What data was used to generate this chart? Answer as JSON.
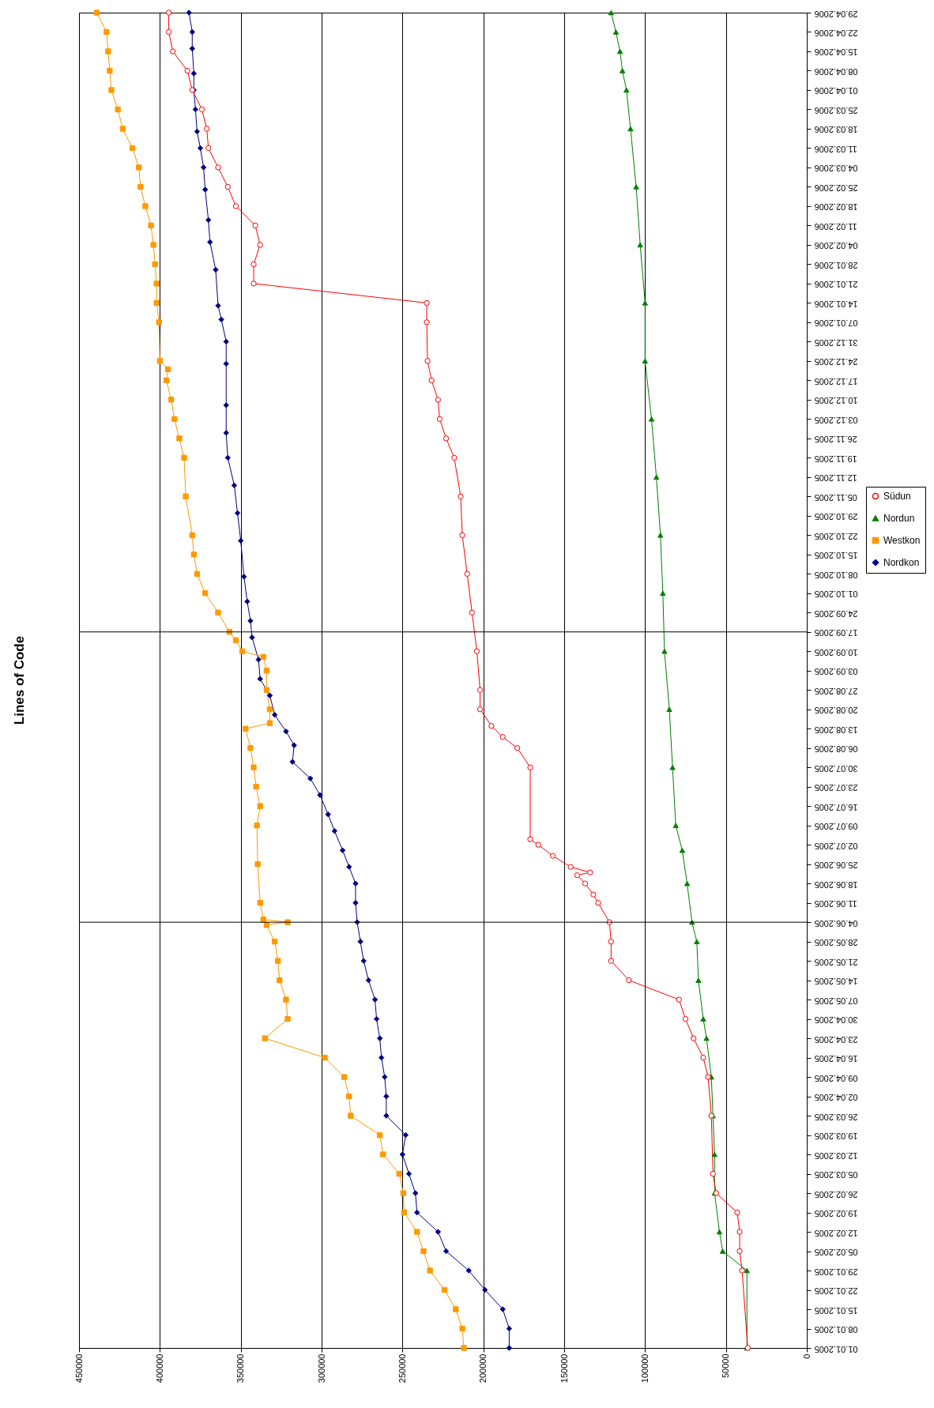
{
  "chart_data": {
    "type": "line",
    "title": "Lines of Code",
    "orientation": "horizontal",
    "ylim": [
      "2005-01-01",
      "2006-04-29"
    ],
    "yticks": [
      {
        "value": "2005-01-01",
        "label": "01.01.2005"
      },
      {
        "value": "2005-01-08",
        "label": "08.01.2005"
      },
      {
        "value": "2005-01-15",
        "label": "15.01.2005"
      },
      {
        "value": "2005-01-22",
        "label": "22.01.2005"
      },
      {
        "value": "2005-01-29",
        "label": "29.01.2005"
      },
      {
        "value": "2005-02-05",
        "label": "05.02.2005"
      },
      {
        "value": "2005-02-12",
        "label": "12.02.2005"
      },
      {
        "value": "2005-02-19",
        "label": "19.02.2005"
      },
      {
        "value": "2005-02-26",
        "label": "26.02.2005"
      },
      {
        "value": "2005-03-05",
        "label": "05.03.2005"
      },
      {
        "value": "2005-03-12",
        "label": "12.03.2005"
      },
      {
        "value": "2005-03-19",
        "label": "19.03.2005"
      },
      {
        "value": "2005-03-26",
        "label": "26.03.2005"
      },
      {
        "value": "2005-04-02",
        "label": "02.04.2005"
      },
      {
        "value": "2005-04-09",
        "label": "09.04.2005"
      },
      {
        "value": "2005-04-16",
        "label": "16.04.2005"
      },
      {
        "value": "2005-04-23",
        "label": "23.04.2005"
      },
      {
        "value": "2005-04-30",
        "label": "30.04.2005"
      },
      {
        "value": "2005-05-07",
        "label": "07.05.2005"
      },
      {
        "value": "2005-05-14",
        "label": "14.05.2005"
      },
      {
        "value": "2005-05-21",
        "label": "21.05.2005"
      },
      {
        "value": "2005-05-28",
        "label": "28.05.2005"
      },
      {
        "value": "2005-06-04",
        "label": "04.06.2005"
      },
      {
        "value": "2005-06-11",
        "label": "11.06.2005"
      },
      {
        "value": "2005-06-18",
        "label": "18.06.2005"
      },
      {
        "value": "2005-06-25",
        "label": "25.06.2005"
      },
      {
        "value": "2005-07-02",
        "label": "02.07.2005"
      },
      {
        "value": "2005-07-09",
        "label": "09.07.2005"
      },
      {
        "value": "2005-07-16",
        "label": "16.07.2005"
      },
      {
        "value": "2005-07-23",
        "label": "23.07.2005"
      },
      {
        "value": "2005-07-30",
        "label": "30.07.2005"
      },
      {
        "value": "2005-08-06",
        "label": "06.08.2005"
      },
      {
        "value": "2005-08-13",
        "label": "13.08.2005"
      },
      {
        "value": "2005-08-20",
        "label": "20.08.2005"
      },
      {
        "value": "2005-08-27",
        "label": "27.08.2005"
      },
      {
        "value": "2005-09-03",
        "label": "03.09.2005"
      },
      {
        "value": "2005-09-10",
        "label": "10.09.2005"
      },
      {
        "value": "2005-09-17",
        "label": "17.09.2005"
      },
      {
        "value": "2005-09-24",
        "label": "24.09.2005"
      },
      {
        "value": "2005-10-01",
        "label": "01.10.2005"
      },
      {
        "value": "2005-10-08",
        "label": "08.10.2005"
      },
      {
        "value": "2005-10-15",
        "label": "15.10.2005"
      },
      {
        "value": "2005-10-22",
        "label": "22.10.2005"
      },
      {
        "value": "2005-10-29",
        "label": "29.10.2005"
      },
      {
        "value": "2005-11-05",
        "label": "05.11.2005"
      },
      {
        "value": "2005-11-12",
        "label": "12.11.2005"
      },
      {
        "value": "2005-11-19",
        "label": "19.11.2005"
      },
      {
        "value": "2005-11-26",
        "label": "26.11.2005"
      },
      {
        "value": "2005-12-03",
        "label": "03.12.2005"
      },
      {
        "value": "2005-12-10",
        "label": "10.12.2005"
      },
      {
        "value": "2005-12-17",
        "label": "17.12.2005"
      },
      {
        "value": "2005-12-24",
        "label": "24.12.2005"
      },
      {
        "value": "2005-12-31",
        "label": "31.12.2005"
      },
      {
        "value": "2006-01-07",
        "label": "07.01.2006"
      },
      {
        "value": "2006-01-14",
        "label": "14.01.2006"
      },
      {
        "value": "2006-01-21",
        "label": "21.01.2006"
      },
      {
        "value": "2006-01-28",
        "label": "28.01.2006"
      },
      {
        "value": "2006-02-04",
        "label": "04.02.2006"
      },
      {
        "value": "2006-02-11",
        "label": "11.02.2006"
      },
      {
        "value": "2006-02-18",
        "label": "18.02.2006"
      },
      {
        "value": "2006-02-25",
        "label": "25.02.2006"
      },
      {
        "value": "2006-03-04",
        "label": "04.03.2006"
      },
      {
        "value": "2006-03-11",
        "label": "11.03.2006"
      },
      {
        "value": "2006-03-18",
        "label": "18.03.2006"
      },
      {
        "value": "2006-03-25",
        "label": "25.03.2006"
      },
      {
        "value": "2006-04-01",
        "label": "01.04.2006"
      },
      {
        "value": "2006-04-08",
        "label": "08.04.2006"
      },
      {
        "value": "2006-04-15",
        "label": "15.04.2006"
      },
      {
        "value": "2006-04-22",
        "label": "22.04.2006"
      },
      {
        "value": "2006-04-29",
        "label": "29.04.2006"
      }
    ],
    "xlim": [
      450000,
      0
    ],
    "xticks": [
      450000,
      400000,
      350000,
      300000,
      250000,
      200000,
      150000,
      100000,
      50000,
      0
    ],
    "grid": "x",
    "legend": "right",
    "ref_lines": [
      {
        "axis": "y",
        "value": "2005-06-04",
        "color": "#000000"
      },
      {
        "axis": "y",
        "value": "2005-09-17",
        "color": "#000000"
      }
    ],
    "series": [
      {
        "name": "Nordkon",
        "color": "#000080",
        "marker": "diamond",
        "x": [
          "2005-01-01",
          "2005-01-08",
          "2005-01-15",
          "2005-01-22",
          "2005-01-29",
          "2005-02-05",
          "2005-02-12",
          "2005-02-19",
          "2005-02-26",
          "2005-03-05",
          "2005-03-12",
          "2005-03-19",
          "2005-03-26",
          "2005-04-02",
          "2005-04-09",
          "2005-04-16",
          "2005-04-23",
          "2005-04-30",
          "2005-05-07",
          "2005-05-14",
          "2005-05-21",
          "2005-05-28",
          "2005-06-04",
          "2005-06-11",
          "2005-06-18",
          "2005-06-24",
          "2005-06-30",
          "2005-07-07",
          "2005-07-13",
          "2005-07-20",
          "2005-07-26",
          "2005-08-01",
          "2005-08-07",
          "2005-08-12",
          "2005-08-18",
          "2005-08-25",
          "2005-08-31",
          "2005-09-07",
          "2005-09-15",
          "2005-09-21",
          "2005-09-28",
          "2005-10-07",
          "2005-10-20",
          "2005-10-30",
          "2005-11-09",
          "2005-11-19",
          "2005-11-28",
          "2005-12-08",
          "2005-12-23",
          "2005-12-31",
          "2006-01-08",
          "2006-01-13",
          "2006-01-26",
          "2006-02-05",
          "2006-02-13",
          "2006-02-24",
          "2006-03-04",
          "2006-03-11",
          "2006-03-17",
          "2006-03-25",
          "2006-04-01",
          "2006-04-07",
          "2006-04-16",
          "2006-04-22",
          "2006-04-29"
        ],
        "values": [
          184000,
          184000,
          188000,
          199000,
          209000,
          223000,
          228000,
          241000,
          242000,
          246000,
          250000,
          248000,
          260000,
          260000,
          261000,
          263000,
          264000,
          266000,
          267000,
          271000,
          274000,
          276000,
          278000,
          279000,
          279000,
          283000,
          287000,
          292000,
          296000,
          301000,
          307000,
          318000,
          317000,
          322000,
          329000,
          332000,
          338000,
          339000,
          343000,
          344000,
          346000,
          348000,
          350000,
          352000,
          354000,
          358000,
          359000,
          359000,
          359000,
          359000,
          362000,
          364000,
          365500,
          369000,
          370000,
          372000,
          373000,
          375000,
          377000,
          378000,
          379000,
          379000,
          380000,
          380000,
          382000
        ]
      },
      {
        "name": "Westkon",
        "color": "#ff9900",
        "marker": "square",
        "x": [
          "2005-01-01",
          "2005-01-08",
          "2005-01-15",
          "2005-01-22",
          "2005-01-29",
          "2005-02-05",
          "2005-02-12",
          "2005-02-19",
          "2005-02-26",
          "2005-03-05",
          "2005-03-12",
          "2005-03-19",
          "2005-03-26",
          "2005-04-02",
          "2005-04-09",
          "2005-04-16",
          "2005-04-23",
          "2005-04-30",
          "2005-05-07",
          "2005-05-14",
          "2005-05-21",
          "2005-05-28",
          "2005-06-03",
          "2005-06-04",
          "2005-06-05",
          "2005-06-11",
          "2005-06-25",
          "2005-07-09",
          "2005-07-16",
          "2005-07-23",
          "2005-07-30",
          "2005-08-06",
          "2005-08-13",
          "2005-08-15",
          "2005-08-20",
          "2005-08-27",
          "2005-09-03",
          "2005-09-08",
          "2005-09-10",
          "2005-09-14",
          "2005-09-17",
          "2005-09-24",
          "2005-10-01",
          "2005-10-08",
          "2005-10-15",
          "2005-10-22",
          "2005-11-05",
          "2005-11-19",
          "2005-11-26",
          "2005-12-03",
          "2005-12-10",
          "2005-12-17",
          "2005-12-21",
          "2005-12-24",
          "2006-01-07",
          "2006-01-14",
          "2006-01-21",
          "2006-01-28",
          "2006-02-04",
          "2006-02-11",
          "2006-02-18",
          "2006-02-25",
          "2006-03-04",
          "2006-03-11",
          "2006-03-18",
          "2006-03-25",
          "2006-04-01",
          "2006-04-08",
          "2006-04-15",
          "2006-04-22",
          "2006-04-29"
        ],
        "values": [
          212000,
          213000,
          217000,
          224000,
          233000,
          237000,
          241000,
          249000,
          249500,
          252000,
          262000,
          264000,
          282000,
          283000,
          286000,
          298000,
          335000,
          321000,
          322000,
          326000,
          327000,
          329000,
          334000,
          321000,
          336000,
          338000,
          339500,
          340000,
          338000,
          340500,
          342000,
          344000,
          347000,
          332000,
          332000,
          334000,
          334000,
          336000,
          349000,
          353000,
          357000,
          364000,
          372000,
          377000,
          379000,
          380000,
          384000,
          385000,
          388000,
          391000,
          393000,
          396000,
          395000,
          400000,
          400500,
          402000,
          402000,
          403000,
          404000,
          405500,
          409000,
          412000,
          413000,
          417000,
          423000,
          426000,
          430000,
          431000,
          432000,
          433000,
          439000
        ]
      },
      {
        "name": "Nordun",
        "color": "#008000",
        "marker": "triangle",
        "x": [
          "2005-01-01",
          "2005-01-29",
          "2005-02-05",
          "2005-02-12",
          "2005-02-26",
          "2005-03-12",
          "2005-03-26",
          "2005-04-09",
          "2005-04-23",
          "2005-04-30",
          "2005-05-14",
          "2005-05-28",
          "2005-06-04",
          "2005-06-18",
          "2005-06-30",
          "2005-07-09",
          "2005-07-30",
          "2005-08-20",
          "2005-09-10",
          "2005-10-01",
          "2005-10-22",
          "2005-11-12",
          "2005-12-03",
          "2005-12-24",
          "2006-01-14",
          "2006-02-04",
          "2006-02-25",
          "2006-03-18",
          "2006-04-01",
          "2006-04-08",
          "2006-04-15",
          "2006-04-22",
          "2006-04-29"
        ],
        "values": [
          37000,
          37000,
          52000,
          54000,
          57000,
          57000,
          58000,
          59000,
          62000,
          64000,
          67000,
          68000,
          71000,
          74000,
          77000,
          81000,
          83000,
          85000,
          88000,
          89000,
          90500,
          93000,
          96000,
          100000,
          100000,
          103000,
          105500,
          109000,
          111500,
          114000,
          115500,
          118000,
          121000
        ]
      },
      {
        "name": "Südun",
        "color": "#ff0000",
        "marker": "circle",
        "x": [
          "2005-01-01",
          "2005-01-29",
          "2005-02-05",
          "2005-02-12",
          "2005-02-19",
          "2005-02-26",
          "2005-03-05",
          "2005-03-26",
          "2005-04-09",
          "2005-04-16",
          "2005-04-23",
          "2005-04-30",
          "2005-05-07",
          "2005-05-14",
          "2005-05-21",
          "2005-05-28",
          "2005-06-04",
          "2005-06-11",
          "2005-06-14",
          "2005-06-18",
          "2005-06-21",
          "2005-06-22",
          "2005-06-24",
          "2005-06-28",
          "2005-07-02",
          "2005-07-04",
          "2005-07-30",
          "2005-08-06",
          "2005-08-10",
          "2005-08-14",
          "2005-08-20",
          "2005-08-27",
          "2005-09-10",
          "2005-09-24",
          "2005-10-08",
          "2005-10-22",
          "2005-11-05",
          "2005-11-19",
          "2005-11-26",
          "2005-12-03",
          "2005-12-10",
          "2005-12-17",
          "2005-12-24",
          "2006-01-07",
          "2006-01-14",
          "2006-01-21",
          "2006-01-28",
          "2006-02-04",
          "2006-02-11",
          "2006-02-18",
          "2006-02-25",
          "2006-03-04",
          "2006-03-11",
          "2006-03-18",
          "2006-03-25",
          "2006-04-01",
          "2006-04-08",
          "2006-04-15",
          "2006-04-22",
          "2006-04-29"
        ],
        "values": [
          36500,
          40000,
          41500,
          41500,
          43000,
          56000,
          58000,
          59000,
          61000,
          64000,
          70000,
          75000,
          79000,
          110000,
          121000,
          121000,
          122000,
          129000,
          132000,
          137000,
          142000,
          134000,
          146000,
          157000,
          166000,
          171000,
          171000,
          179000,
          188000,
          195000,
          202000,
          202000,
          204000,
          207000,
          210000,
          213000,
          214000,
          218000,
          223000,
          227000,
          228000,
          232000,
          234500,
          235000,
          235000,
          342000,
          342000,
          338000,
          341000,
          353000,
          358000,
          364000,
          370000,
          371000,
          374000,
          380000,
          383000,
          392000,
          394500,
          394500
        ]
      }
    ]
  }
}
